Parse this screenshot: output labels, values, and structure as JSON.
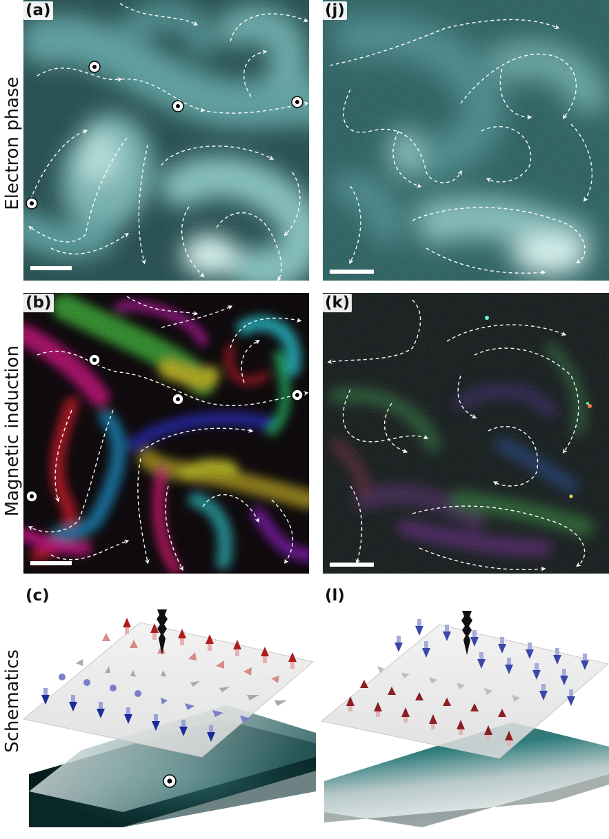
{
  "panel_labels": {
    "a": "(a)",
    "j": "(j)",
    "b": "(b)",
    "k": "(k)",
    "c": "(c)",
    "l": "(l)"
  },
  "row_labels": {
    "phase": "Electron phase",
    "induction": "Magnetic induction",
    "schematics": "Schematics"
  },
  "colors": {
    "phase_dark": "#0f3a3c",
    "phase_mid": "#3f7f80",
    "phase_light": "#d9f0ee",
    "induction_bg": "#120d10",
    "spin_up": "#b01c1c",
    "spin_down": "#1a2a9a",
    "spin_inplane": "#cfcfcf",
    "tip": "#111111"
  },
  "icons": [
    "vortex-marker-icon",
    "domain-wall-arrow-icon",
    "stm-tip-icon",
    "spin-arrow-icon"
  ]
}
